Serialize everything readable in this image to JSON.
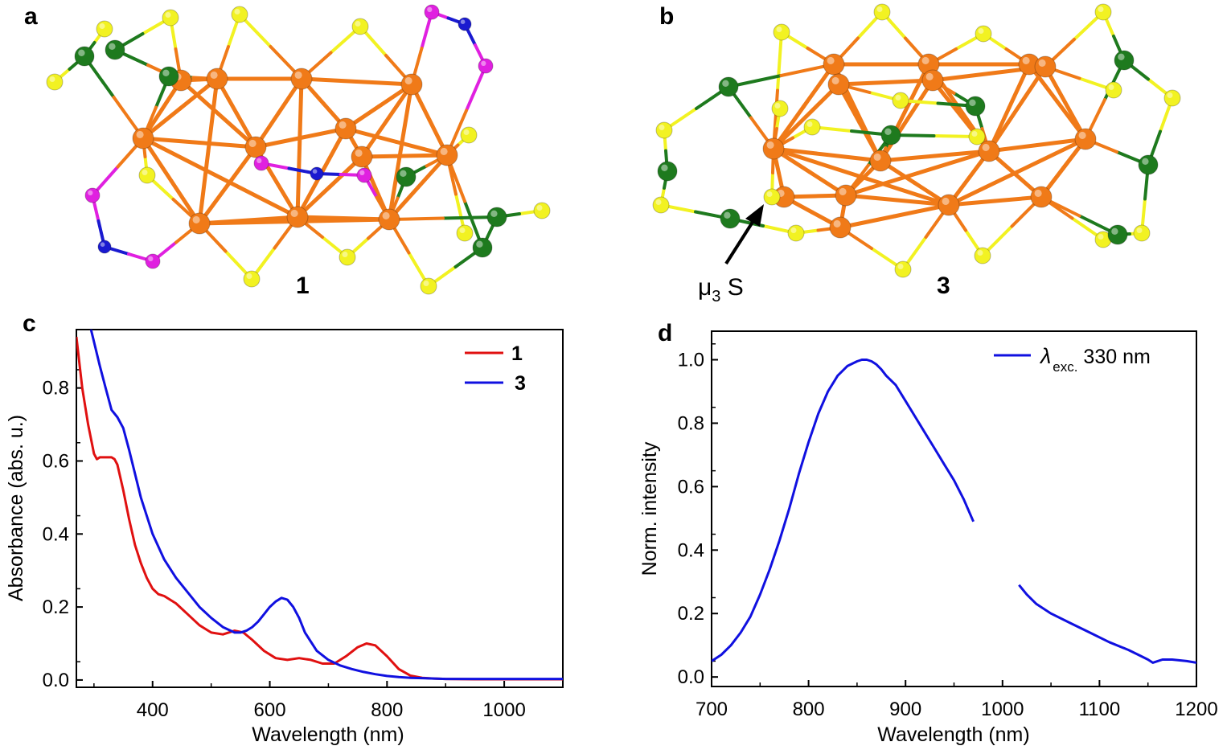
{
  "panels": {
    "a": {
      "letter": "a",
      "compound": "1"
    },
    "b": {
      "letter": "b",
      "compound": "3",
      "annotation": {
        "mu": "μ",
        "sub": "3",
        "text": " S"
      }
    },
    "c": {
      "letter": "c"
    },
    "d": {
      "letter": "d"
    }
  },
  "colors": {
    "cu": "#f07a18",
    "s": "#f2f222",
    "p": "#1e7a1e",
    "n": "#1a1ad0",
    "linker": "#e020e0",
    "series1": "#e01010",
    "series3": "#1010e0"
  },
  "chart_data": [
    {
      "type": "line",
      "panel": "c",
      "xlabel": "Wavelength (nm)",
      "ylabel": "Absorbance (abs. u.)",
      "xlim": [
        270,
        1100
      ],
      "ylim": [
        -0.02,
        0.96
      ],
      "xticks": [
        400,
        600,
        800,
        1000
      ],
      "yticks": [
        0.0,
        0.2,
        0.4,
        0.6,
        0.8
      ],
      "ytick_labels": [
        "0.0",
        "0.2",
        "0.4",
        "0.6",
        "0.8"
      ],
      "legend_position": "top-right",
      "series": [
        {
          "name": "1",
          "color": "#e01010",
          "x": [
            270,
            280,
            290,
            300,
            305,
            310,
            320,
            330,
            335,
            340,
            350,
            360,
            370,
            380,
            390,
            400,
            410,
            420,
            440,
            460,
            480,
            500,
            520,
            540,
            555,
            570,
            590,
            610,
            630,
            650,
            670,
            690,
            710,
            730,
            750,
            765,
            780,
            800,
            820,
            840,
            860,
            880,
            900,
            950,
            1000,
            1100
          ],
          "y": [
            0.94,
            0.8,
            0.7,
            0.62,
            0.605,
            0.61,
            0.61,
            0.61,
            0.605,
            0.59,
            0.52,
            0.44,
            0.37,
            0.32,
            0.28,
            0.25,
            0.235,
            0.23,
            0.21,
            0.18,
            0.15,
            0.13,
            0.125,
            0.135,
            0.13,
            0.11,
            0.08,
            0.06,
            0.055,
            0.06,
            0.055,
            0.045,
            0.045,
            0.065,
            0.09,
            0.1,
            0.095,
            0.065,
            0.03,
            0.012,
            0.006,
            0.004,
            0.003,
            0.002,
            0.002,
            0.002
          ]
        },
        {
          "name": "3",
          "color": "#1010e0",
          "x": [
            295,
            310,
            320,
            330,
            340,
            350,
            360,
            380,
            400,
            420,
            440,
            460,
            480,
            500,
            520,
            540,
            550,
            560,
            570,
            580,
            590,
            600,
            610,
            620,
            630,
            640,
            650,
            660,
            680,
            700,
            720,
            740,
            760,
            780,
            800,
            820,
            840,
            860,
            880,
            900,
            950,
            1000,
            1100
          ],
          "y": [
            0.96,
            0.86,
            0.8,
            0.74,
            0.72,
            0.69,
            0.63,
            0.5,
            0.4,
            0.33,
            0.28,
            0.24,
            0.2,
            0.17,
            0.145,
            0.13,
            0.13,
            0.135,
            0.145,
            0.16,
            0.18,
            0.2,
            0.215,
            0.225,
            0.22,
            0.2,
            0.17,
            0.13,
            0.08,
            0.055,
            0.04,
            0.03,
            0.022,
            0.016,
            0.011,
            0.008,
            0.006,
            0.005,
            0.004,
            0.003,
            0.003,
            0.003,
            0.003
          ]
        }
      ]
    },
    {
      "type": "line",
      "panel": "d",
      "xlabel": "Wavelength (nm)",
      "ylabel": "Norm. intensity",
      "xlim": [
        700,
        1200
      ],
      "ylim": [
        -0.03,
        1.09
      ],
      "xticks": [
        700,
        800,
        900,
        1000,
        1100,
        1200
      ],
      "yticks": [
        0.0,
        0.2,
        0.4,
        0.6,
        0.8,
        1.0
      ],
      "ytick_labels": [
        "0.0",
        "0.2",
        "0.4",
        "0.6",
        "0.8",
        "1.0"
      ],
      "legend_position": "top-right",
      "legend": {
        "lambda": "λ",
        "sub": "exc.",
        "text": " 330 nm"
      },
      "series": [
        {
          "name": "λ exc. 330 nm",
          "color": "#1010e0",
          "segments": [
            {
              "x": [
                700,
                710,
                720,
                730,
                740,
                750,
                760,
                770,
                780,
                790,
                800,
                810,
                820,
                830,
                840,
                850,
                855,
                860,
                865,
                870,
                875,
                880,
                890,
                900,
                910,
                920,
                930,
                940,
                950,
                960,
                970
              ],
              "y": [
                0.05,
                0.07,
                0.1,
                0.14,
                0.19,
                0.26,
                0.34,
                0.43,
                0.53,
                0.64,
                0.74,
                0.83,
                0.9,
                0.95,
                0.98,
                0.995,
                1.0,
                1.0,
                0.995,
                0.985,
                0.97,
                0.95,
                0.92,
                0.87,
                0.82,
                0.77,
                0.72,
                0.67,
                0.62,
                0.56,
                0.49
              ]
            },
            {
              "x": [
                1017,
                1025,
                1035,
                1050,
                1070,
                1090,
                1110,
                1130,
                1140,
                1150,
                1155,
                1160,
                1165,
                1175,
                1190,
                1200
              ],
              "y": [
                0.29,
                0.26,
                0.23,
                0.2,
                0.17,
                0.14,
                0.11,
                0.085,
                0.07,
                0.055,
                0.045,
                0.05,
                0.055,
                0.055,
                0.05,
                0.045
              ]
            }
          ]
        }
      ]
    }
  ]
}
